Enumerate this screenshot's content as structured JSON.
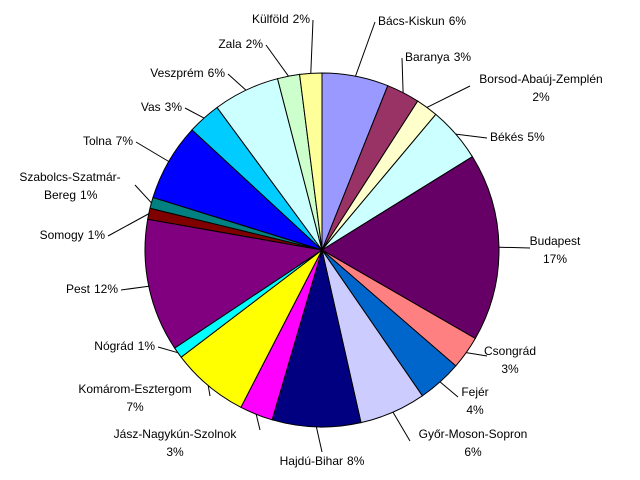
{
  "chart_data": {
    "type": "pie",
    "categories": [
      "Bács-Kiskun",
      "Baranya",
      "Borsod-Abaúj-Zemplén",
      "Békés",
      "Budapest",
      "Csongrád",
      "Fejér",
      "Győr-Moson-Sopron",
      "Hajdú-Bihar",
      "Jász-Nagykún-Szolnok",
      "Komárom-Esztergom",
      "Nógrád",
      "Pest",
      "Somogy",
      "Szabolcs-Szatmár-Bereg",
      "Tolna",
      "Vas",
      "Veszprém",
      "Zala",
      "Külföld"
    ],
    "values": [
      6,
      3,
      2,
      5,
      17,
      3,
      4,
      6,
      8,
      3,
      7,
      1,
      12,
      1,
      1,
      7,
      3,
      6,
      2,
      2
    ],
    "value_labels": [
      "6%",
      "3%",
      "2%",
      "5%",
      "17%",
      "3%",
      "4%",
      "6%",
      "8%",
      "3%",
      "7%",
      "1%",
      "12%",
      "1%",
      "1%",
      "7%",
      "3%",
      "6%",
      "2%",
      "2%"
    ],
    "colors": [
      "#9999ff",
      "#993366",
      "#ffffcc",
      "#ccffff",
      "#660066",
      "#ff8080",
      "#0066cc",
      "#ccccff",
      "#000080",
      "#ff00ff",
      "#ffff00",
      "#00ffff",
      "#800080",
      "#800000",
      "#008080",
      "#0000ff",
      "#00ccff",
      "#ccffff",
      "#ccffcc",
      "#ffff99"
    ]
  }
}
